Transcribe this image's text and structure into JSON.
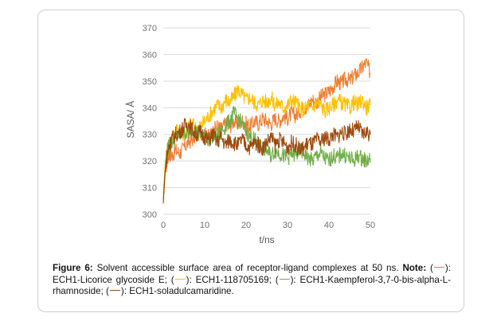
{
  "chart_data": {
    "type": "line",
    "xlabel": "t/ns",
    "ylabel": "SASA/ Å",
    "xlim": [
      0,
      50
    ],
    "ylim": [
      300,
      370
    ],
    "xticks": [
      "0",
      "10",
      "20",
      "30",
      "40",
      "50"
    ],
    "yticks": [
      "300",
      "310",
      "320",
      "330",
      "340",
      "350",
      "360",
      "370"
    ],
    "grid": "horizontal",
    "series": [
      {
        "name": "ECH1-Licorice glycoside E",
        "color": "#ed7d31",
        "x": [
          0,
          0.5,
          1,
          1.5,
          2,
          3,
          4,
          5,
          6,
          7,
          8,
          9,
          10,
          11,
          12,
          13,
          14,
          15,
          16,
          17,
          18,
          19,
          20,
          21,
          22,
          23,
          24,
          25,
          26,
          27,
          28,
          29,
          30,
          31,
          32,
          33,
          34,
          35,
          36,
          37,
          38,
          39,
          40,
          41,
          42,
          43,
          44,
          45,
          46,
          47,
          48,
          49,
          50
        ],
        "y": [
          305,
          316,
          321,
          323,
          322,
          324,
          323,
          325,
          327,
          328,
          330,
          331,
          330,
          329,
          331,
          333,
          332,
          334,
          333,
          335,
          334,
          335,
          334,
          333,
          335,
          334,
          336,
          335,
          334,
          336,
          335,
          337,
          336,
          338,
          337,
          339,
          340,
          341,
          343,
          342,
          344,
          345,
          346,
          348,
          350,
          349,
          351,
          350,
          352,
          353,
          355,
          357,
          353
        ]
      },
      {
        "name": "ECH1-118705169",
        "color": "#ffc000",
        "x": [
          0,
          0.5,
          1,
          1.5,
          2,
          3,
          4,
          5,
          6,
          7,
          8,
          9,
          10,
          11,
          12,
          13,
          14,
          15,
          16,
          17,
          18,
          19,
          20,
          21,
          22,
          23,
          24,
          25,
          26,
          27,
          28,
          29,
          30,
          31,
          32,
          33,
          34,
          35,
          36,
          37,
          38,
          39,
          40,
          41,
          42,
          43,
          44,
          45,
          46,
          47,
          48,
          49,
          50
        ],
        "y": [
          308,
          320,
          325,
          327,
          328,
          331,
          332,
          330,
          333,
          334,
          332,
          333,
          335,
          337,
          339,
          341,
          340,
          343,
          342,
          344,
          347,
          345,
          343,
          344,
          342,
          341,
          343,
          342,
          344,
          341,
          342,
          340,
          341,
          343,
          342,
          340,
          339,
          341,
          340,
          342,
          341,
          339,
          340,
          341,
          343,
          342,
          341,
          340,
          342,
          341,
          343,
          340,
          341
        ]
      },
      {
        "name": "ECH1-Kaempferol-3,7-0-bis-alpha-L-rhamnoside",
        "color": "#70ad47",
        "x": [
          0,
          0.5,
          1,
          1.5,
          2,
          3,
          4,
          5,
          6,
          7,
          8,
          9,
          10,
          11,
          12,
          13,
          14,
          15,
          16,
          17,
          18,
          19,
          20,
          21,
          22,
          23,
          24,
          25,
          26,
          27,
          28,
          29,
          30,
          31,
          32,
          33,
          34,
          35,
          36,
          37,
          38,
          39,
          40,
          41,
          42,
          43,
          44,
          45,
          46,
          47,
          48,
          49,
          50
        ],
        "y": [
          306,
          318,
          324,
          326,
          327,
          329,
          330,
          331,
          330,
          332,
          331,
          330,
          329,
          328,
          330,
          329,
          331,
          333,
          335,
          338,
          336,
          334,
          331,
          329,
          328,
          326,
          325,
          324,
          322,
          324,
          323,
          322,
          321,
          323,
          322,
          324,
          323,
          321,
          320,
          322,
          323,
          321,
          320,
          322,
          321,
          323,
          322,
          321,
          320,
          322,
          321,
          320,
          321
        ]
      },
      {
        "name": "ECH1-soladulcamaridine",
        "color": "#9c4b10",
        "x": [
          0,
          0.5,
          1,
          1.5,
          2,
          3,
          4,
          5,
          6,
          7,
          8,
          9,
          10,
          11,
          12,
          13,
          14,
          15,
          16,
          17,
          18,
          19,
          20,
          21,
          22,
          23,
          24,
          25,
          26,
          27,
          28,
          29,
          30,
          31,
          32,
          33,
          34,
          35,
          36,
          37,
          38,
          39,
          40,
          41,
          42,
          43,
          44,
          45,
          46,
          47,
          48,
          49,
          50
        ],
        "y": [
          304,
          317,
          323,
          326,
          328,
          330,
          331,
          333,
          334,
          332,
          330,
          331,
          329,
          328,
          330,
          327,
          329,
          326,
          328,
          327,
          326,
          328,
          326,
          325,
          327,
          326,
          325,
          327,
          329,
          326,
          328,
          327,
          325,
          327,
          326,
          324,
          325,
          327,
          326,
          328,
          327,
          329,
          328,
          330,
          329,
          331,
          330,
          332,
          331,
          333,
          330,
          331,
          330
        ]
      }
    ]
  },
  "caption": {
    "figure_label": "Figure 6:",
    "figure_text": " Solvent accessible surface area of receptor-ligand complexes at 50 ns.",
    "note_label": "Note:",
    "legend_items": [
      {
        "name": "ECH1-Licorice glycoside E",
        "suffix": ";"
      },
      {
        "name": "ECH1-118705169",
        "suffix": ";"
      },
      {
        "name": "ECH1-Kaempferol-3,7-0-bis-alpha-L-rhamnoside",
        "suffix": ";"
      },
      {
        "name": "ECH1-soladulcamaridine",
        "suffix": "."
      }
    ]
  }
}
